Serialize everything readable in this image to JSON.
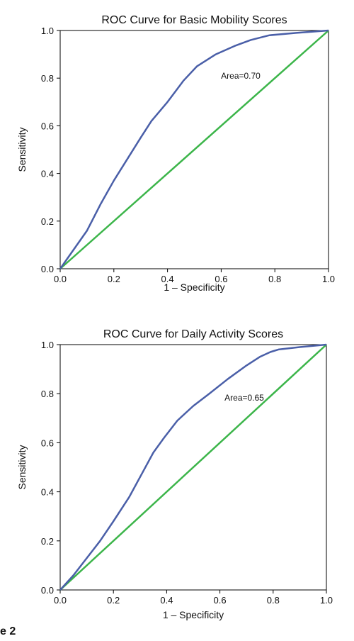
{
  "figure": {
    "caption_fragment": "e 2"
  },
  "colors": {
    "roc_curve": "#4a5fa8",
    "reference_line": "#3cb54a",
    "axis": "#000000"
  },
  "chart_data": [
    {
      "type": "line",
      "title": "ROC Curve for Basic Mobility Scores",
      "xlabel": "1 – Specificity",
      "ylabel": "Sensitivity",
      "xlim": [
        0,
        1
      ],
      "ylim": [
        0,
        1
      ],
      "xticks": [
        "0.0",
        "0.2",
        "0.4",
        "0.6",
        "0.8",
        "1.0"
      ],
      "yticks": [
        "0.0",
        "0.2",
        "0.4",
        "0.6",
        "0.8",
        "1.0"
      ],
      "grid": false,
      "annotation": "Area=0.70",
      "series": [
        {
          "x": [
            0.0,
            0.05,
            0.1,
            0.15,
            0.2,
            0.25,
            0.3,
            0.34,
            0.4,
            0.46,
            0.51,
            0.58,
            0.65,
            0.71,
            0.78,
            0.88,
            1.0
          ],
          "y": [
            0.0,
            0.08,
            0.16,
            0.27,
            0.37,
            0.46,
            0.55,
            0.62,
            0.7,
            0.79,
            0.85,
            0.9,
            0.935,
            0.96,
            0.98,
            0.99,
            1.0
          ]
        },
        {
          "x": [
            0.0,
            1.0
          ],
          "y": [
            0.0,
            1.0
          ]
        }
      ]
    },
    {
      "type": "line",
      "title": "ROC Curve for Daily Activity Scores",
      "xlabel": "1 – Specificity",
      "ylabel": "Sensitivity",
      "xlim": [
        0,
        1
      ],
      "ylim": [
        0,
        1
      ],
      "xticks": [
        "0.0",
        "0.2",
        "0.4",
        "0.6",
        "0.8",
        "1.0"
      ],
      "yticks": [
        "0.0",
        "0.2",
        "0.4",
        "0.6",
        "0.8",
        "1.0"
      ],
      "grid": false,
      "annotation": "Area=0.65",
      "series": [
        {
          "x": [
            0.0,
            0.05,
            0.1,
            0.15,
            0.2,
            0.26,
            0.31,
            0.35,
            0.39,
            0.44,
            0.5,
            0.56,
            0.63,
            0.7,
            0.75,
            0.79,
            0.82,
            0.9,
            1.0
          ],
          "y": [
            0.0,
            0.06,
            0.13,
            0.2,
            0.28,
            0.38,
            0.48,
            0.56,
            0.62,
            0.69,
            0.75,
            0.8,
            0.86,
            0.915,
            0.95,
            0.97,
            0.98,
            0.99,
            1.0
          ]
        },
        {
          "x": [
            0.0,
            1.0
          ],
          "y": [
            0.0,
            1.0
          ]
        }
      ]
    }
  ]
}
